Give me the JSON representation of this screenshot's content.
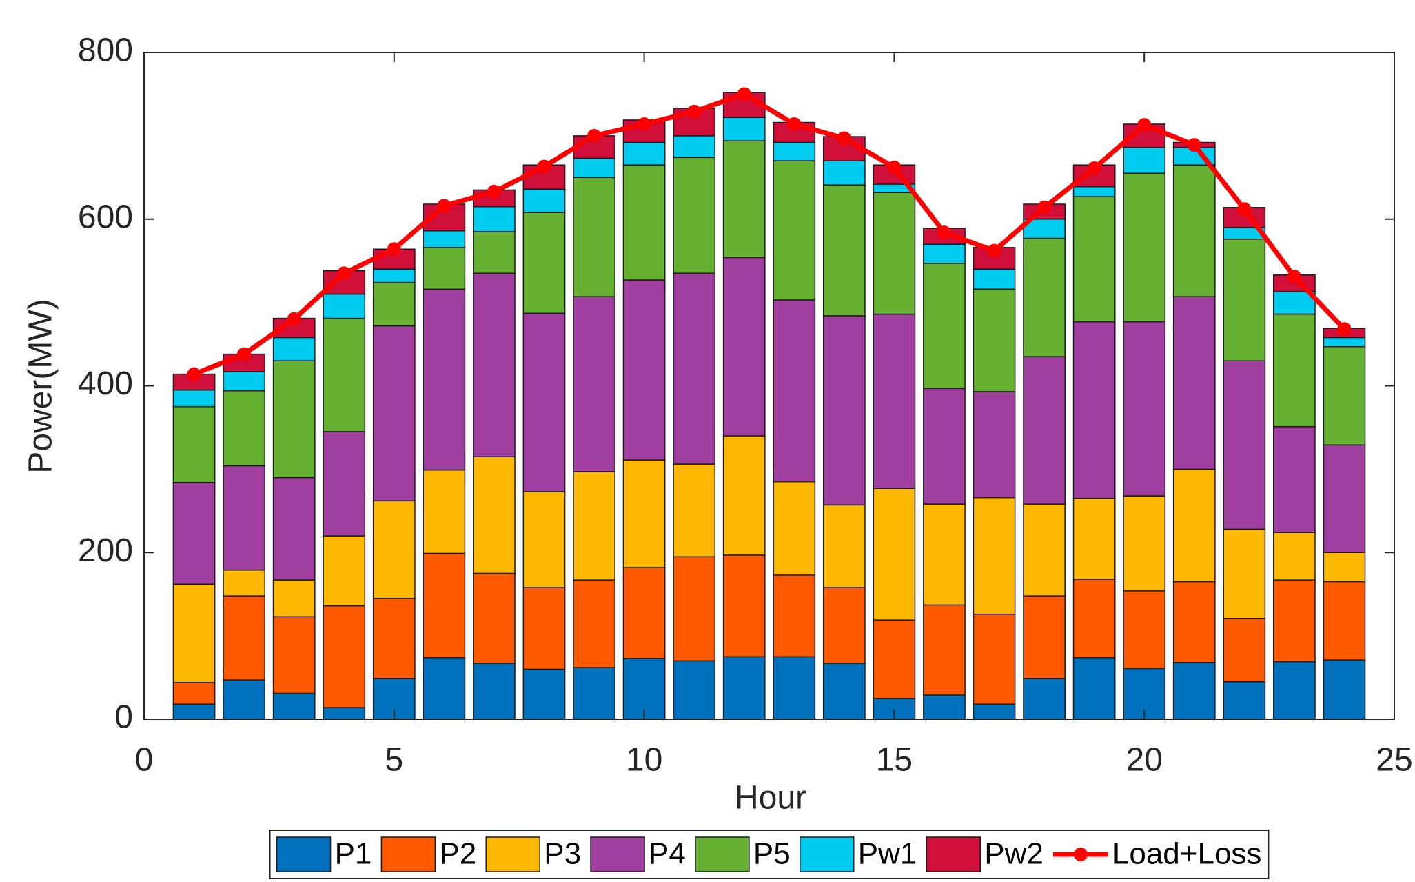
{
  "chart_data": {
    "type": "bar",
    "stacked": true,
    "x_label": "Hour",
    "y_label": "Power(MW)",
    "x": [
      1,
      2,
      3,
      4,
      5,
      6,
      7,
      8,
      9,
      10,
      11,
      12,
      13,
      14,
      15,
      16,
      17,
      18,
      19,
      20,
      21,
      22,
      23,
      24
    ],
    "xlim": [
      0,
      25
    ],
    "xticks": [
      0,
      5,
      10,
      15,
      20,
      25
    ],
    "ylim": [
      0,
      800
    ],
    "yticks": [
      0,
      200,
      400,
      600,
      800
    ],
    "series": [
      {
        "name": "P1",
        "color": "#0072BD",
        "values": [
          18,
          47,
          31,
          14,
          49,
          74,
          67,
          60,
          62,
          73,
          70,
          75,
          75,
          67,
          25,
          29,
          18,
          49,
          74,
          61,
          68,
          45,
          69,
          71
        ]
      },
      {
        "name": "P2",
        "color": "#FF5A00",
        "values": [
          26,
          101,
          92,
          122,
          96,
          125,
          108,
          98,
          105,
          109,
          125,
          122,
          98,
          91,
          94,
          108,
          108,
          99,
          94,
          93,
          97,
          76,
          98,
          94
        ]
      },
      {
        "name": "P3",
        "color": "#FFB800",
        "values": [
          118,
          31,
          44,
          84,
          117,
          100,
          140,
          115,
          130,
          129,
          111,
          143,
          112,
          99,
          158,
          121,
          140,
          110,
          97,
          114,
          135,
          107,
          57,
          35
        ]
      },
      {
        "name": "P4",
        "color": "#A03FA0",
        "values": [
          122,
          125,
          123,
          125,
          210,
          217,
          220,
          214,
          210,
          216,
          229,
          214,
          218,
          227,
          209,
          139,
          127,
          177,
          212,
          209,
          207,
          202,
          127,
          129
        ]
      },
      {
        "name": "P5",
        "color": "#66B032",
        "values": [
          91,
          90,
          140,
          136,
          52,
          50,
          50,
          121,
          143,
          138,
          139,
          140,
          167,
          157,
          146,
          150,
          123,
          142,
          150,
          178,
          158,
          146,
          135,
          118
        ]
      },
      {
        "name": "Pw1",
        "color": "#00CCF0",
        "values": [
          20,
          23,
          28,
          29,
          16,
          20,
          30,
          28,
          23,
          27,
          26,
          28,
          22,
          29,
          10,
          23,
          24,
          23,
          12,
          31,
          21,
          14,
          27,
          11
        ]
      },
      {
        "name": "Pw2",
        "color": "#D0103A",
        "values": [
          19,
          21,
          23,
          28,
          24,
          32,
          20,
          29,
          27,
          27,
          33,
          30,
          24,
          29,
          23,
          19,
          26,
          18,
          26,
          28,
          6,
          24,
          20,
          11
        ]
      }
    ],
    "line_series": {
      "name": "Load+Loss",
      "color": "#FF0000",
      "values": [
        414,
        438,
        480,
        535,
        564,
        616,
        633,
        663,
        700,
        714,
        729,
        750,
        714,
        697,
        662,
        584,
        562,
        614,
        661,
        713,
        689,
        612,
        531,
        468
      ]
    }
  }
}
